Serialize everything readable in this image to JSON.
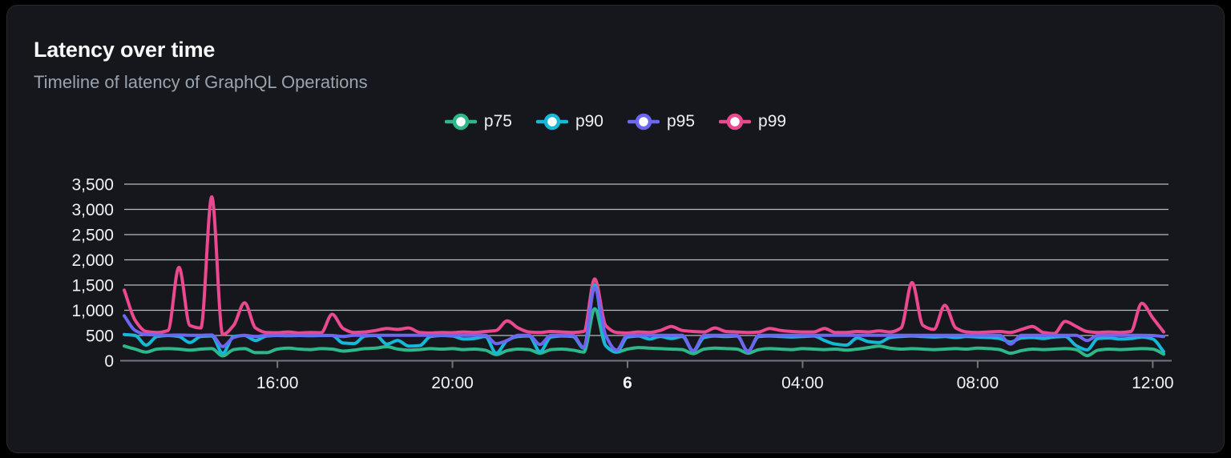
{
  "card": {
    "title": "Latency over time",
    "subtitle": "Timeline of latency of GraphQL Operations"
  },
  "colors": {
    "page_bg": "#000000",
    "panel_bg": "#15171c",
    "panel_border": "#262a31",
    "grid_line": "#c9ced5",
    "axis_line": "#71767e",
    "tick_text": "#f1f2f4",
    "title_text": "#f8f9fa",
    "subtitle_text": "#9aa3ae"
  },
  "chart_data": {
    "type": "line",
    "title": "Latency over time",
    "subtitle": "Timeline of latency of GraphQL Operations",
    "legend_position": "top",
    "grid": "horizontal",
    "x_start_time": "12:30",
    "x_interval_minutes": 15,
    "point_count": 96,
    "ylim": [
      0,
      3500
    ],
    "y_ticks": [
      {
        "value": 0,
        "label": "0"
      },
      {
        "value": 500,
        "label": "500"
      },
      {
        "value": 1000,
        "label": "1,000"
      },
      {
        "value": 1500,
        "label": "1,500"
      },
      {
        "value": 2000,
        "label": "2,000"
      },
      {
        "value": 2500,
        "label": "2,500"
      },
      {
        "value": 3000,
        "label": "3,000"
      },
      {
        "value": 3500,
        "label": "3,500"
      }
    ],
    "x_ticks": [
      {
        "index": 14,
        "label": "16:00",
        "bold": false
      },
      {
        "index": 30,
        "label": "20:00",
        "bold": false
      },
      {
        "index": 46,
        "label": "6",
        "bold": true
      },
      {
        "index": 62,
        "label": "04:00",
        "bold": false
      },
      {
        "index": 78,
        "label": "08:00",
        "bold": false
      },
      {
        "index": 94,
        "label": "12:00",
        "bold": false
      }
    ],
    "series": [
      {
        "name": "p75",
        "color": "#2eb88a",
        "values": [
          290,
          230,
          170,
          230,
          240,
          230,
          210,
          230,
          240,
          95,
          220,
          240,
          160,
          160,
          230,
          250,
          230,
          220,
          240,
          230,
          190,
          210,
          240,
          250,
          280,
          230,
          210,
          220,
          240,
          230,
          240,
          220,
          230,
          210,
          120,
          200,
          230,
          220,
          150,
          220,
          230,
          210,
          170,
          1030,
          300,
          170,
          230,
          260,
          250,
          240,
          230,
          220,
          140,
          230,
          250,
          240,
          230,
          150,
          220,
          240,
          230,
          220,
          240,
          230,
          220,
          230,
          210,
          230,
          260,
          290,
          250,
          230,
          240,
          230,
          220,
          230,
          240,
          230,
          250,
          240,
          220,
          150,
          200,
          230,
          220,
          230,
          240,
          220,
          100,
          210,
          230,
          220,
          230,
          240,
          230,
          130
        ]
      },
      {
        "name": "p90",
        "color": "#15b8d6",
        "values": [
          520,
          500,
          310,
          480,
          500,
          480,
          360,
          480,
          490,
          150,
          480,
          500,
          400,
          490,
          500,
          495,
          500,
          495,
          500,
          500,
          350,
          340,
          490,
          500,
          330,
          400,
          290,
          300,
          480,
          500,
          490,
          430,
          440,
          480,
          150,
          400,
          480,
          490,
          180,
          470,
          490,
          480,
          250,
          1500,
          300,
          170,
          470,
          490,
          430,
          480,
          440,
          480,
          190,
          460,
          490,
          480,
          490,
          190,
          480,
          490,
          480,
          470,
          480,
          490,
          400,
          330,
          310,
          450,
          380,
          360,
          460,
          480,
          490,
          480,
          470,
          480,
          460,
          480,
          470,
          460,
          440,
          370,
          450,
          460,
          440,
          470,
          480,
          300,
          215,
          440,
          450,
          430,
          440,
          470,
          430,
          180
        ]
      },
      {
        "name": "p95",
        "color": "#6d66f2",
        "values": [
          890,
          600,
          520,
          510,
          505,
          510,
          505,
          505,
          510,
          280,
          460,
          505,
          480,
          505,
          505,
          505,
          505,
          505,
          505,
          500,
          480,
          505,
          505,
          505,
          505,
          505,
          505,
          505,
          505,
          505,
          505,
          505,
          505,
          505,
          340,
          400,
          505,
          505,
          320,
          505,
          505,
          505,
          260,
          1450,
          505,
          210,
          505,
          505,
          505,
          505,
          505,
          505,
          200,
          505,
          505,
          505,
          505,
          180,
          505,
          505,
          505,
          505,
          505,
          505,
          505,
          505,
          505,
          505,
          505,
          505,
          505,
          505,
          505,
          505,
          505,
          505,
          505,
          505,
          505,
          505,
          505,
          330,
          505,
          505,
          505,
          505,
          505,
          505,
          400,
          505,
          505,
          505,
          505,
          505,
          500,
          480
        ]
      },
      {
        "name": "p99",
        "color": "#ec4890",
        "values": [
          1400,
          800,
          580,
          560,
          600,
          1850,
          700,
          650,
          3250,
          520,
          700,
          1150,
          650,
          560,
          555,
          570,
          550,
          560,
          555,
          920,
          640,
          560,
          570,
          600,
          640,
          620,
          650,
          560,
          550,
          560,
          555,
          570,
          560,
          580,
          600,
          790,
          650,
          570,
          560,
          580,
          570,
          560,
          580,
          1620,
          700,
          560,
          550,
          570,
          560,
          600,
          680,
          600,
          580,
          570,
          650,
          580,
          570,
          560,
          570,
          640,
          600,
          580,
          570,
          570,
          640,
          560,
          560,
          580,
          570,
          590,
          570,
          650,
          1550,
          700,
          620,
          1100,
          650,
          570,
          560,
          570,
          580,
          560,
          620,
          680,
          560,
          540,
          780,
          680,
          580,
          560,
          570,
          560,
          580,
          1140,
          850,
          570
        ]
      }
    ]
  }
}
